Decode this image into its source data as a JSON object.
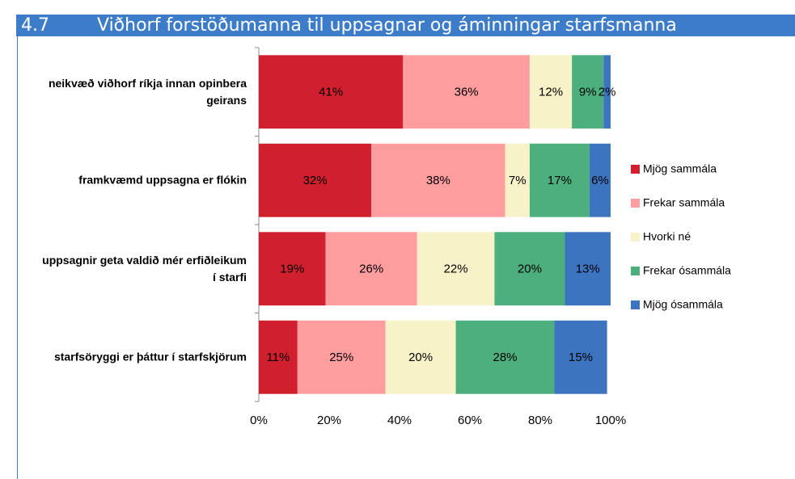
{
  "section": "4.7",
  "chart_data": {
    "type": "stacked_barh",
    "title": "Viðhorf forstöðumanna til uppsagnar og áminningar starfsmanna",
    "categories": [
      "neikvæð viðhorf ríkja innan opinbera geirans",
      "framkvæmd uppsagna er flókin",
      "uppsagnir geta valdið mér erfiðleikum í starfi",
      "starfsöryggi er þáttur í starfskjörum"
    ],
    "series": [
      {
        "name": "Mjög sammála",
        "color": "#d0202e",
        "values": [
          41,
          32,
          19,
          11
        ],
        "value_labels": [
          "41%",
          "32%",
          "19%",
          "11%"
        ]
      },
      {
        "name": "Frekar sammála",
        "color": "#ff9d9f",
        "values": [
          36,
          38,
          26,
          25
        ],
        "value_labels": [
          "36%",
          "38%",
          "26%",
          "25%"
        ]
      },
      {
        "name": "Hvorki né",
        "color": "#f8f2c8",
        "values": [
          12,
          7,
          22,
          20
        ],
        "value_labels": [
          "12%",
          "7%",
          "22%",
          "20%"
        ]
      },
      {
        "name": "Frekar ósammála",
        "color": "#4caf7d",
        "values": [
          9,
          17,
          20,
          28
        ],
        "value_labels": [
          "9%",
          "17%",
          "20%",
          "28%"
        ]
      },
      {
        "name": "Mjög ósammála",
        "color": "#3c74c0",
        "values": [
          2,
          6,
          13,
          15
        ],
        "value_labels": [
          "2%",
          "6%",
          "13%",
          "15%"
        ]
      }
    ],
    "xlim": [
      0,
      100
    ],
    "xticks": [
      {
        "value": 0,
        "label": "0%"
      },
      {
        "value": 20,
        "label": "20%"
      },
      {
        "value": 40,
        "label": "40%"
      },
      {
        "value": 60,
        "label": "60%"
      },
      {
        "value": 80,
        "label": "80%"
      },
      {
        "value": 100,
        "label": "100%"
      }
    ],
    "legend": "right"
  }
}
